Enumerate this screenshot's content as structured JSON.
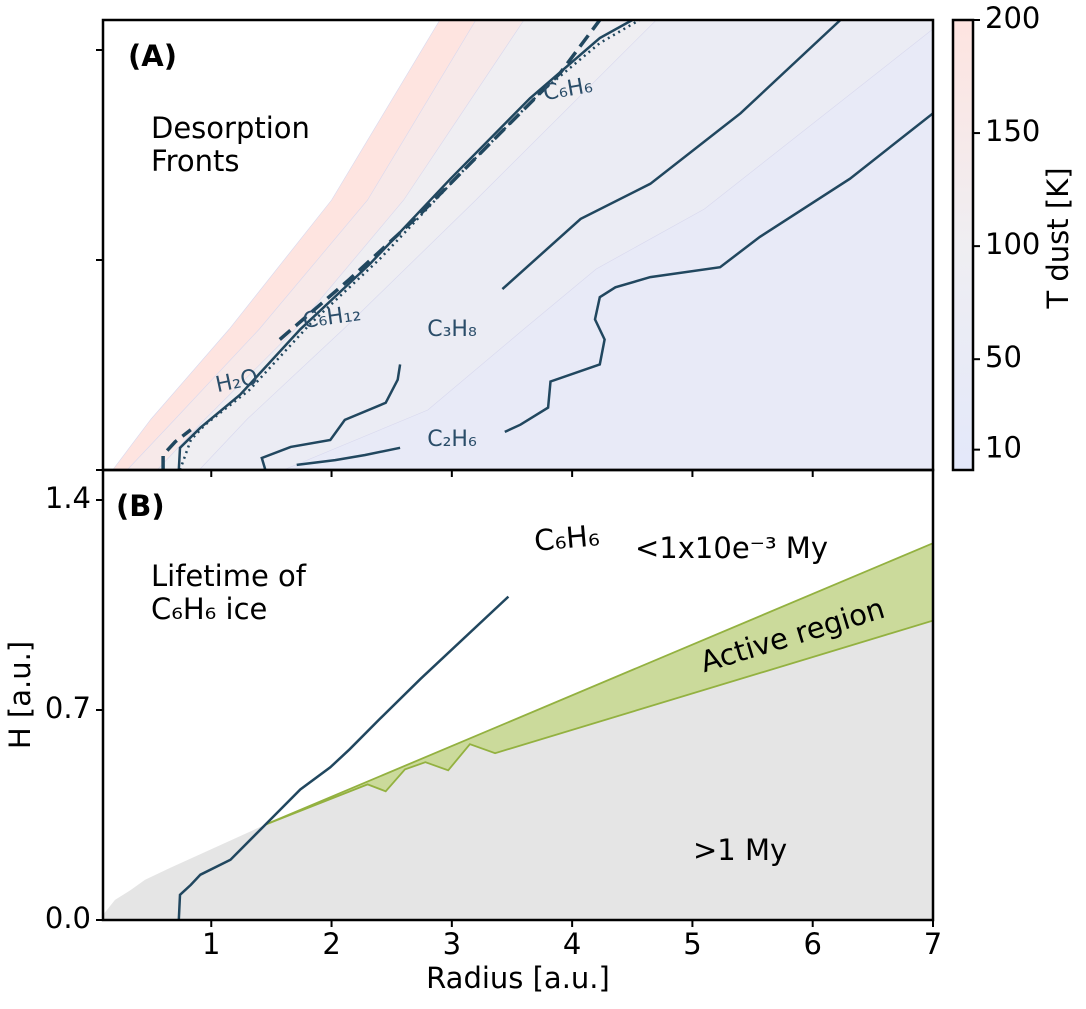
{
  "chart_data": [
    {
      "type": "contour",
      "panel_label": "(A)",
      "annotation": [
        "Desorption",
        "Fronts"
      ],
      "xlim": [
        0.1,
        7
      ],
      "ylim": [
        0,
        1.5
      ],
      "xticks": [
        1,
        2,
        3,
        4,
        5,
        6,
        7
      ],
      "yticks": [
        0,
        0.7,
        1.4
      ],
      "colorbar": {
        "label": "T dust [K]",
        "lim": [
          1,
          200
        ],
        "ticks": [
          10,
          50,
          100,
          150,
          200
        ]
      },
      "colormap": {
        "values": [
          1,
          100,
          200
        ],
        "colors": [
          "#e3e8fa",
          "#efeef2",
          "#fee4e0"
        ]
      },
      "contours": [
        {
          "level": 200,
          "x": [
            0.18,
            0.5,
            1.15,
            2.0,
            2.9
          ],
          "y": [
            0,
            0.17,
            0.47,
            0.9,
            1.5
          ]
        },
        {
          "level": 150,
          "x": [
            0.3,
            0.7,
            1.4,
            2.3,
            3.2
          ],
          "y": [
            0,
            0.17,
            0.47,
            0.9,
            1.5
          ]
        },
        {
          "level": 100,
          "x": [
            0.55,
            0.95,
            1.7,
            2.6,
            3.6
          ],
          "y": [
            0,
            0.17,
            0.47,
            0.9,
            1.5
          ]
        },
        {
          "level": 70,
          "x": [
            0.9,
            1.3,
            2.1,
            3.2,
            4.7
          ],
          "y": [
            0,
            0.17,
            0.47,
            0.9,
            1.5
          ]
        },
        {
          "level": 40,
          "x": [
            1.6,
            2.8,
            3.6,
            4.2,
            5.1,
            7.0
          ],
          "y": [
            0,
            0.2,
            0.47,
            0.67,
            0.87,
            1.47
          ]
        }
      ],
      "series": [
        {
          "name": "H₂O",
          "color": "#21475f",
          "style": "dashed",
          "x": [
            0.6,
            0.6,
            0.7,
            0.83,
            null,
            1.57,
            2.15,
            2.74,
            3.4,
            3.9,
            4.23
          ],
          "y": [
            0,
            0.05,
            0.094,
            0.134,
            null,
            0.435,
            0.636,
            0.854,
            1.122,
            1.323,
            1.5
          ]
        },
        {
          "name": "C₆H₁₂",
          "color": "#21475f",
          "style": "solid",
          "x": [
            0.73,
            0.74,
            0.91,
            1.24,
            1.74,
            2.32,
            2.99,
            3.65,
            4.23,
            4.5
          ],
          "y": [
            0,
            0.074,
            0.141,
            0.251,
            0.469,
            0.687,
            0.971,
            1.239,
            1.44,
            1.5
          ]
        },
        {
          "name": "C₆H₆",
          "color": "#21475f",
          "style": "dotted",
          "x": [
            0.74,
            0.83,
            0.95,
            1.32,
            1.82,
            2.4,
            3.07,
            3.73,
            4.23,
            4.56
          ],
          "y": [
            0,
            0.1,
            0.151,
            0.268,
            0.486,
            0.703,
            0.988,
            1.256,
            1.423,
            1.5
          ]
        },
        {
          "name": "C₃H₈",
          "color": "#21475f",
          "style": "solid",
          "x": [
            1.45,
            1.42,
            1.66,
            1.99,
            2.11,
            2.45,
            2.55,
            2.57,
            null,
            3.42,
            4.07,
            4.65,
            5.4,
            6.23
          ],
          "y": [
            0,
            0.04,
            0.077,
            0.1,
            0.167,
            0.224,
            0.301,
            0.352,
            null,
            0.603,
            0.837,
            0.954,
            1.189,
            1.5
          ]
        },
        {
          "name": "C₂H₆",
          "color": "#21475f",
          "style": "solid",
          "x": [
            1.71,
            2.03,
            2.28,
            2.57,
            null,
            3.44,
            3.57,
            3.8,
            3.82,
            4.23,
            4.27,
            4.19,
            4.23,
            4.36,
            4.65,
            5.23,
            5.56,
            6.31,
            7.0
          ],
          "y": [
            0.017,
            0.033,
            0.05,
            0.074,
            null,
            0.127,
            0.151,
            0.208,
            0.295,
            0.352,
            0.435,
            0.502,
            0.576,
            0.609,
            0.643,
            0.676,
            0.777,
            0.971,
            1.189
          ]
        }
      ]
    },
    {
      "type": "region",
      "panel_label": "(B)",
      "annotation": [
        "Lifetime of",
        "C₆H₆ ice"
      ],
      "xlabel": "Radius [a.u.]",
      "ylabel": "H [a.u.]",
      "xlim": [
        0.1,
        7
      ],
      "ylim": [
        0,
        1.5
      ],
      "xticks": [
        1,
        2,
        3,
        4,
        5,
        6,
        7
      ],
      "yticks": [
        {
          "value": 0,
          "label": "0.0"
        },
        0.7,
        1.4
      ],
      "regions": [
        {
          "name": "<1x10e⁻³ My",
          "color": "#ffffff"
        },
        {
          "name": ">1 My",
          "color": "#e5e5e5",
          "x": [
            0.1,
            0.2,
            0.33,
            0.45,
            0.66,
            0.99,
            1.45,
            2.3,
            2.45,
            2.61,
            2.78,
            2.97,
            3.15,
            3.36,
            7.0
          ],
          "y": [
            0.017,
            0.067,
            0.1,
            0.134,
            0.174,
            0.234,
            0.318,
            0.452,
            0.429,
            0.502,
            0.526,
            0.499,
            0.586,
            0.556,
            0.998
          ]
        },
        {
          "name": "Active region",
          "color": "#cbda9b",
          "edge": "#93b140",
          "x": [
            1.45,
            7.0
          ],
          "y": [
            0.318,
            1.256
          ],
          "x_lower": [
            1.45,
            2.3,
            2.45,
            2.61,
            2.78,
            2.97,
            3.15,
            3.36,
            7.0
          ],
          "y_lower": [
            0.318,
            0.452,
            0.429,
            0.502,
            0.526,
            0.499,
            0.586,
            0.556,
            0.998
          ]
        }
      ],
      "series": [
        {
          "name": "C₆H₆",
          "color": "#21475f",
          "style": "solid",
          "x": [
            0.73,
            0.74,
            0.83,
            0.91,
            1.16,
            1.45,
            1.74,
            1.99,
            2.15,
            2.4,
            2.74,
            3.47
          ],
          "y": [
            0,
            0.084,
            0.117,
            0.151,
            0.201,
            0.318,
            0.435,
            0.509,
            0.569,
            0.67,
            0.804,
            1.078
          ]
        }
      ]
    }
  ]
}
